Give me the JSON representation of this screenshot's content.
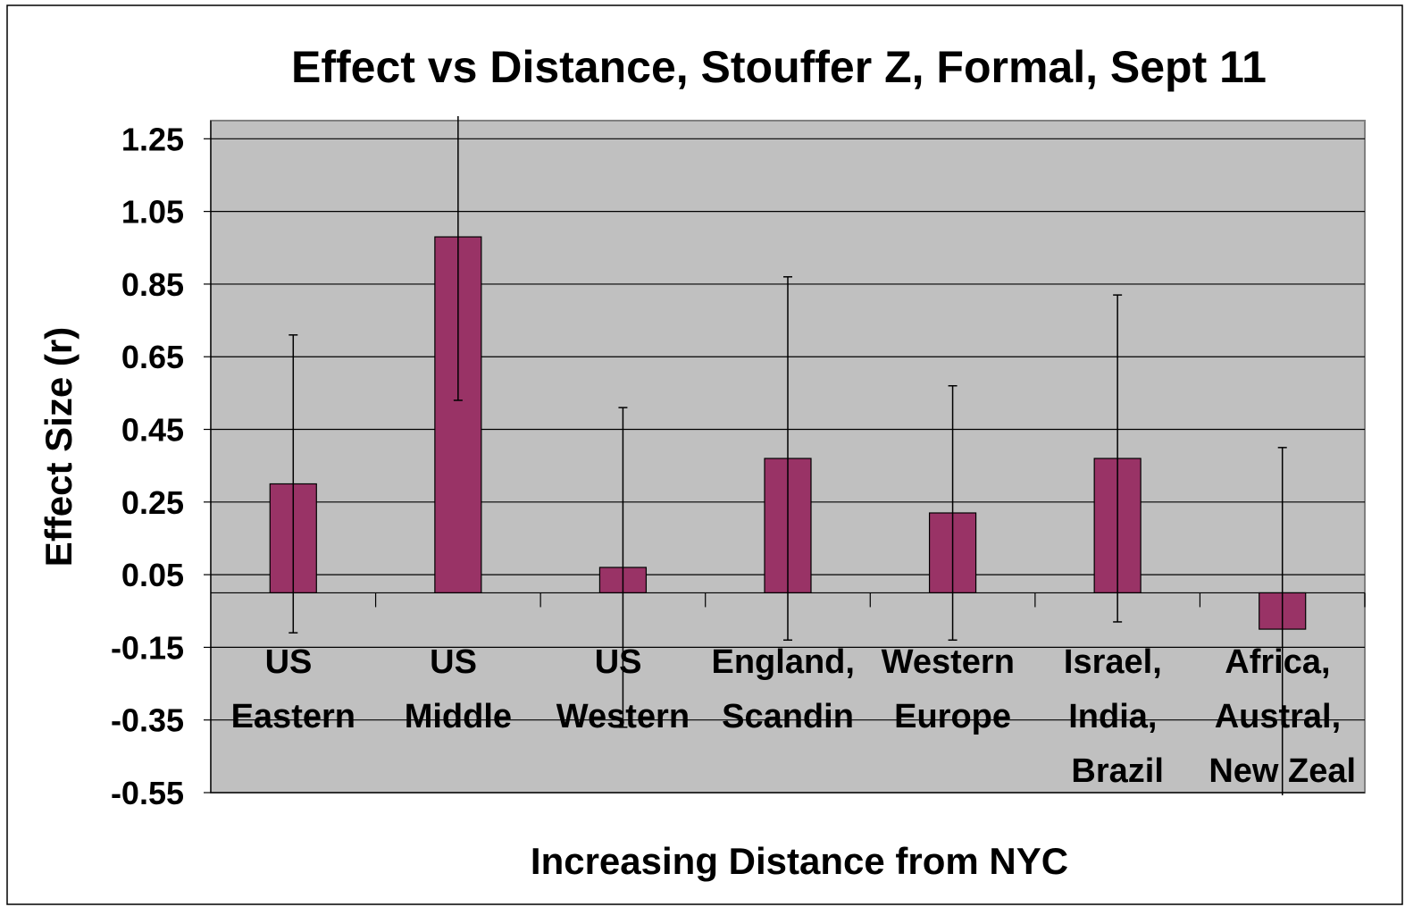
{
  "chart_data": {
    "type": "bar",
    "title": "Effect vs Distance, Stouffer Z, Formal, Sept 11",
    "x_label": "Increasing Distance from NYC",
    "y_label": "Effect Size (r)",
    "categories": [
      "US\nEastern",
      "US\nMiddle",
      "US\nWestern",
      "England,\nScandin",
      "Western\nEurope",
      "Israel,\nIndia,\nBrazil",
      "Africa,\nAustral,\nNew Zeal"
    ],
    "values": [
      0.3,
      0.98,
      0.07,
      0.37,
      0.22,
      0.37,
      -0.1
    ],
    "errors": [
      0.41,
      0.45,
      0.44,
      0.5,
      0.35,
      0.45,
      0.5
    ],
    "color": "#993366",
    "ylim": [
      -0.55,
      1.3
    ],
    "yticks": [
      -0.55,
      -0.35,
      -0.15,
      0.05,
      0.25,
      0.45,
      0.65,
      0.85,
      1.05,
      1.25
    ],
    "grid": true
  }
}
